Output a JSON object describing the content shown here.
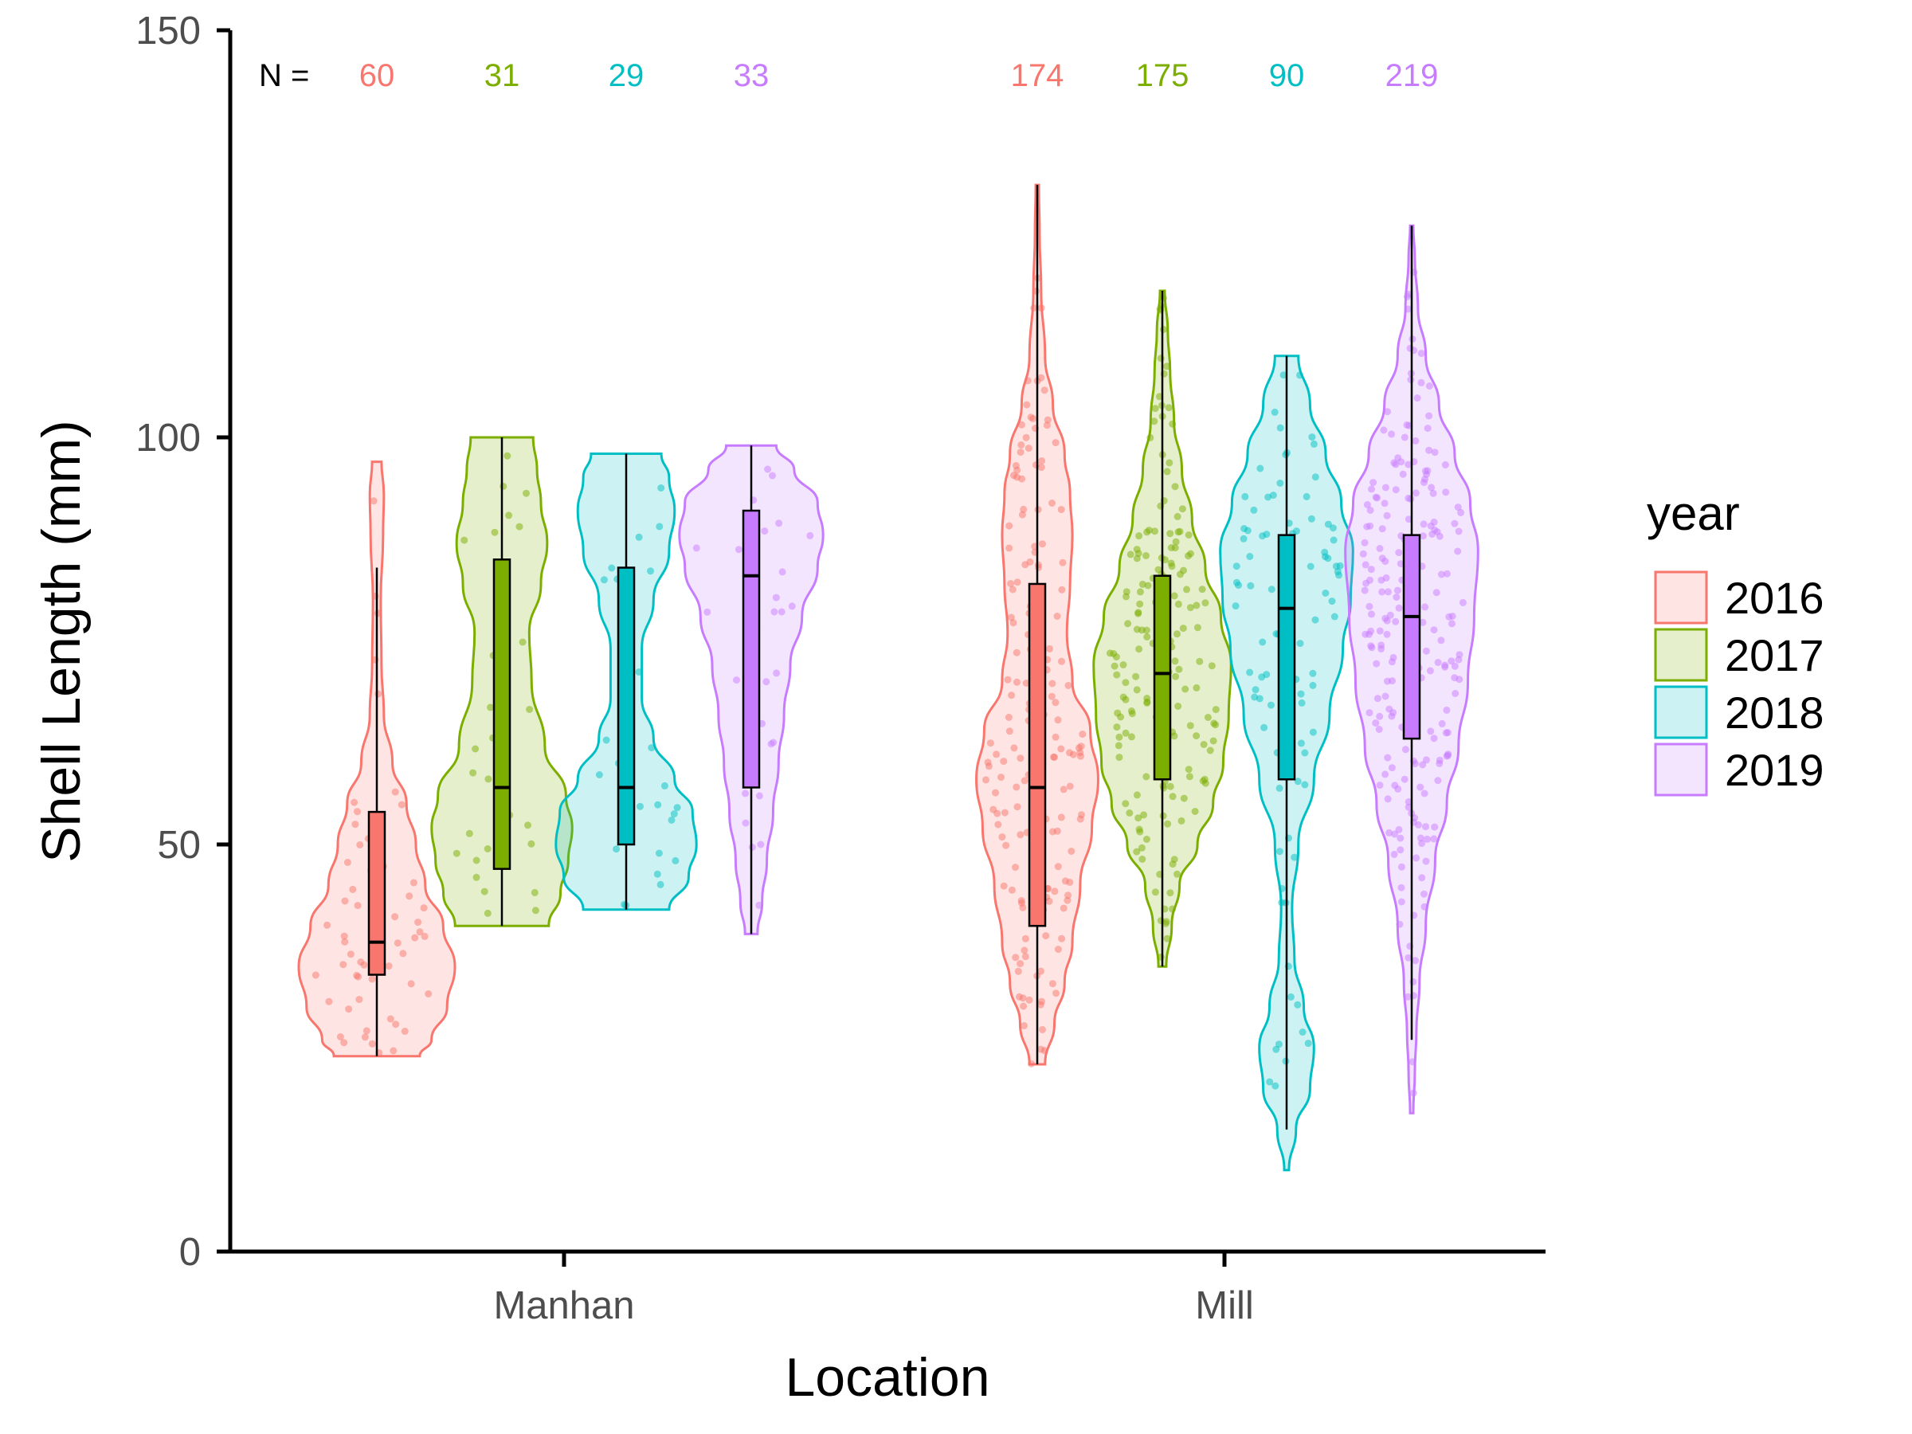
{
  "chart_data": {
    "type": "violin",
    "xlabel": "Location",
    "ylabel": "Shell Length (mm)",
    "ylim": [
      0,
      150
    ],
    "yticks": [
      0,
      50,
      100,
      150
    ],
    "categories": [
      "Manhan",
      "Mill"
    ],
    "n_prefix": "N =",
    "legend": {
      "title": "year",
      "placement": "right",
      "entries": [
        {
          "label": "2016",
          "color": "#F8766D"
        },
        {
          "label": "2017",
          "color": "#7CAE00"
        },
        {
          "label": "2018",
          "color": "#00BFC4"
        },
        {
          "label": "2019",
          "color": "#C77CFF"
        }
      ]
    },
    "groups": [
      {
        "location": "Manhan",
        "year": "2016",
        "n": "60",
        "color": "#F8766D",
        "min": 24,
        "max": 97,
        "q1": 34,
        "median": 38,
        "q3": 54,
        "whisker_low": 24,
        "whisker_high": 84,
        "density": [
          [
            24,
            0.55
          ],
          [
            26,
            0.7
          ],
          [
            30,
            0.9
          ],
          [
            35,
            1.0
          ],
          [
            40,
            0.85
          ],
          [
            45,
            0.62
          ],
          [
            50,
            0.5
          ],
          [
            55,
            0.38
          ],
          [
            60,
            0.2
          ],
          [
            66,
            0.09
          ],
          [
            72,
            0.06
          ],
          [
            80,
            0.05
          ],
          [
            88,
            0.08
          ],
          [
            93,
            0.09
          ],
          [
            97,
            0.06
          ]
        ]
      },
      {
        "location": "Manhan",
        "year": "2017",
        "n": "31",
        "color": "#7CAE00",
        "min": 40,
        "max": 100,
        "q1": 47,
        "median": 57,
        "q3": 85,
        "whisker_low": 40,
        "whisker_high": 100,
        "density": [
          [
            40,
            0.6
          ],
          [
            44,
            0.75
          ],
          [
            48,
            0.85
          ],
          [
            52,
            0.9
          ],
          [
            56,
            0.82
          ],
          [
            62,
            0.55
          ],
          [
            70,
            0.38
          ],
          [
            76,
            0.35
          ],
          [
            82,
            0.5
          ],
          [
            87,
            0.58
          ],
          [
            92,
            0.5
          ],
          [
            96,
            0.45
          ],
          [
            100,
            0.4
          ]
        ]
      },
      {
        "location": "Manhan",
        "year": "2018",
        "n": "29",
        "color": "#00BFC4",
        "min": 42,
        "max": 98,
        "q1": 50,
        "median": 57,
        "q3": 84,
        "whisker_low": 42,
        "whisker_high": 98,
        "density": [
          [
            42,
            0.55
          ],
          [
            46,
            0.8
          ],
          [
            50,
            0.9
          ],
          [
            54,
            0.85
          ],
          [
            58,
            0.62
          ],
          [
            63,
            0.35
          ],
          [
            68,
            0.2
          ],
          [
            74,
            0.2
          ],
          [
            80,
            0.35
          ],
          [
            86,
            0.55
          ],
          [
            91,
            0.62
          ],
          [
            95,
            0.55
          ],
          [
            98,
            0.45
          ]
        ]
      },
      {
        "location": "Mill",
        "year": "2016",
        "n": "174",
        "color": "#F8766D",
        "min": 23,
        "max": 131,
        "q1": 40,
        "median": 57,
        "q3": 82,
        "whisker_low": 23,
        "whisker_high": 131,
        "density": [
          [
            23,
            0.1
          ],
          [
            28,
            0.22
          ],
          [
            33,
            0.35
          ],
          [
            38,
            0.45
          ],
          [
            45,
            0.55
          ],
          [
            52,
            0.7
          ],
          [
            58,
            0.78
          ],
          [
            64,
            0.68
          ],
          [
            70,
            0.45
          ],
          [
            76,
            0.38
          ],
          [
            82,
            0.42
          ],
          [
            88,
            0.45
          ],
          [
            93,
            0.42
          ],
          [
            98,
            0.35
          ],
          [
            104,
            0.2
          ],
          [
            110,
            0.1
          ],
          [
            118,
            0.05
          ],
          [
            125,
            0.03
          ],
          [
            131,
            0.02
          ]
        ]
      },
      {
        "location": "Mill",
        "year": "2017",
        "n": "175",
        "color": "#7CAE00",
        "min": 35,
        "max": 118,
        "q1": 58,
        "median": 71,
        "q3": 83,
        "whisker_low": 35,
        "whisker_high": 118,
        "density": [
          [
            35,
            0.05
          ],
          [
            40,
            0.12
          ],
          [
            45,
            0.22
          ],
          [
            50,
            0.45
          ],
          [
            55,
            0.65
          ],
          [
            60,
            0.78
          ],
          [
            66,
            0.85
          ],
          [
            72,
            0.88
          ],
          [
            78,
            0.75
          ],
          [
            84,
            0.55
          ],
          [
            90,
            0.38
          ],
          [
            96,
            0.25
          ],
          [
            102,
            0.15
          ],
          [
            108,
            0.1
          ],
          [
            113,
            0.07
          ],
          [
            118,
            0.03
          ]
        ]
      },
      {
        "location": "Mill",
        "year": "2018",
        "n": "90",
        "color": "#00BFC4",
        "min": 10,
        "max": 110,
        "q1": 58,
        "median": 79,
        "q3": 88,
        "whisker_low": 15,
        "whisker_high": 110,
        "density": [
          [
            10,
            0.03
          ],
          [
            15,
            0.12
          ],
          [
            20,
            0.3
          ],
          [
            25,
            0.35
          ],
          [
            30,
            0.22
          ],
          [
            36,
            0.1
          ],
          [
            42,
            0.07
          ],
          [
            50,
            0.15
          ],
          [
            58,
            0.35
          ],
          [
            66,
            0.55
          ],
          [
            74,
            0.72
          ],
          [
            80,
            0.82
          ],
          [
            86,
            0.85
          ],
          [
            92,
            0.7
          ],
          [
            98,
            0.5
          ],
          [
            104,
            0.3
          ],
          [
            110,
            0.15
          ]
        ]
      },
      {
        "location": "Mill",
        "year": "2019",
        "n": "219",
        "color": "#C77CFF",
        "min": 17,
        "max": 126,
        "q1": 63,
        "median": 78,
        "q3": 88,
        "whisker_low": 26,
        "whisker_high": 126,
        "density": [
          [
            17,
            0.02
          ],
          [
            22,
            0.04
          ],
          [
            27,
            0.06
          ],
          [
            33,
            0.1
          ],
          [
            40,
            0.18
          ],
          [
            48,
            0.3
          ],
          [
            55,
            0.45
          ],
          [
            62,
            0.6
          ],
          [
            70,
            0.72
          ],
          [
            78,
            0.8
          ],
          [
            86,
            0.85
          ],
          [
            92,
            0.75
          ],
          [
            98,
            0.55
          ],
          [
            104,
            0.35
          ],
          [
            110,
            0.18
          ],
          [
            116,
            0.08
          ],
          [
            122,
            0.04
          ],
          [
            126,
            0.02
          ]
        ]
      },
      {
        "location": "Manhan",
        "year": "2019",
        "n": "33",
        "color": "#C77CFF",
        "min": 39,
        "max": 99,
        "q1": 57,
        "median": 83,
        "q3": 91,
        "whisker_low": 39,
        "whisker_high": 99,
        "density": [
          [
            39,
            0.08
          ],
          [
            43,
            0.14
          ],
          [
            48,
            0.2
          ],
          [
            54,
            0.28
          ],
          [
            60,
            0.35
          ],
          [
            66,
            0.42
          ],
          [
            72,
            0.5
          ],
          [
            78,
            0.65
          ],
          [
            84,
            0.85
          ],
          [
            88,
            0.92
          ],
          [
            92,
            0.85
          ],
          [
            96,
            0.55
          ],
          [
            99,
            0.32
          ]
        ]
      }
    ]
  }
}
